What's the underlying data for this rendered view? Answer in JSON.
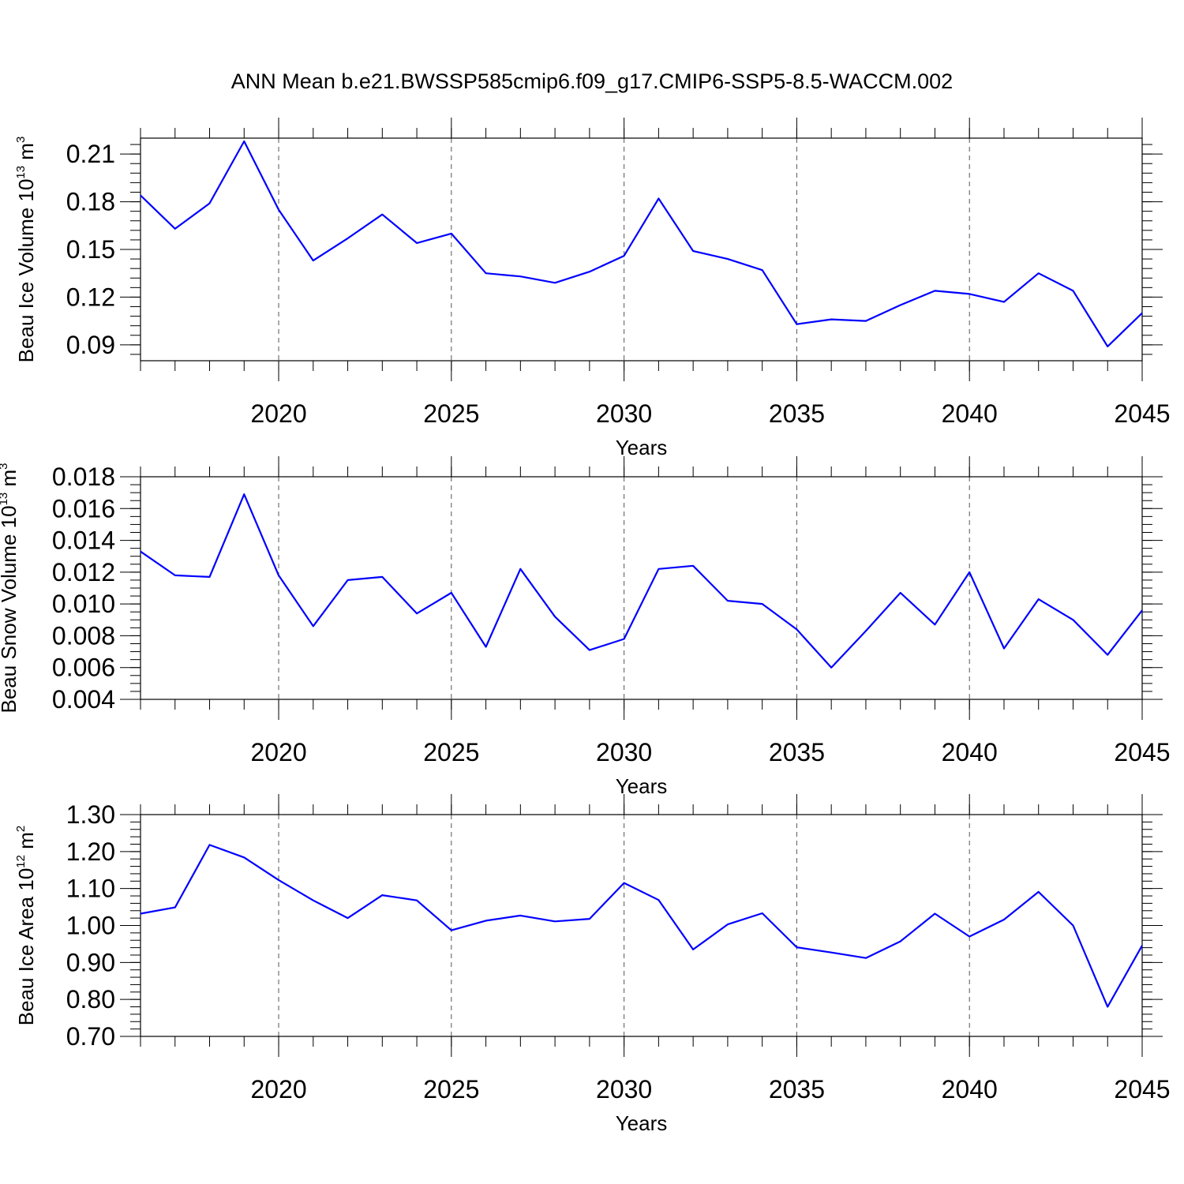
{
  "title": "ANN Mean b.e21.BWSSP585cmip6.f09_g17.CMIP6-SSP5-8.5-WACCM.002",
  "colors": {
    "line": "#0000ff"
  },
  "chart_data": [
    {
      "type": "line",
      "name": "ice-volume",
      "xlabel": "Years",
      "ylabel": {
        "text": "Beau Ice Volume 10",
        "sup": "13",
        "unit": " m",
        "unit_sup": "3"
      },
      "xlim": [
        2016,
        2045
      ],
      "ylim": [
        0.08,
        0.22
      ],
      "y_ticks": [
        0.09,
        0.12,
        0.15,
        0.18,
        0.21
      ],
      "y_tick_labels": [
        "0.09",
        "0.12",
        "0.15",
        "0.18",
        "0.21"
      ],
      "y_minor_step": 0.006,
      "x_ticks": [
        2020,
        2025,
        2030,
        2035,
        2040,
        2045
      ],
      "x_tick_labels": [
        "2020",
        "2025",
        "2030",
        "2035",
        "2040",
        "2045"
      ],
      "grid": "vertical dashed at major x ticks",
      "series": [
        {
          "name": "Beau Ice Volume",
          "x": [
            2016,
            2017,
            2018,
            2019,
            2020,
            2021,
            2022,
            2023,
            2024,
            2025,
            2026,
            2027,
            2028,
            2029,
            2030,
            2031,
            2032,
            2033,
            2034,
            2035,
            2036,
            2037,
            2038,
            2039,
            2040,
            2041,
            2042,
            2043,
            2044,
            2045
          ],
          "values": [
            0.184,
            0.163,
            0.179,
            0.218,
            0.175,
            0.143,
            0.157,
            0.172,
            0.154,
            0.16,
            0.135,
            0.133,
            0.129,
            0.136,
            0.146,
            0.182,
            0.149,
            0.144,
            0.137,
            0.103,
            0.106,
            0.105,
            0.115,
            0.124,
            0.122,
            0.117,
            0.135,
            0.124,
            0.089,
            0.11
          ]
        }
      ]
    },
    {
      "type": "line",
      "name": "snow-volume",
      "xlabel": "Years",
      "ylabel": {
        "text": "Beau Snow Volume 10",
        "sup": "13",
        "unit": " m",
        "unit_sup": "3"
      },
      "xlim": [
        2016,
        2045
      ],
      "ylim": [
        0.004,
        0.018
      ],
      "y_ticks": [
        0.004,
        0.006,
        0.008,
        0.01,
        0.012,
        0.014,
        0.016,
        0.018
      ],
      "y_tick_labels": [
        "0.004",
        "0.006",
        "0.008",
        "0.010",
        "0.012",
        "0.014",
        "0.016",
        "0.018"
      ],
      "y_minor_step": 0.0005,
      "x_ticks": [
        2020,
        2025,
        2030,
        2035,
        2040,
        2045
      ],
      "x_tick_labels": [
        "2020",
        "2025",
        "2030",
        "2035",
        "2040",
        "2045"
      ],
      "grid": "vertical dashed at major x ticks",
      "series": [
        {
          "name": "Beau Snow Volume",
          "x": [
            2016,
            2017,
            2018,
            2019,
            2020,
            2021,
            2022,
            2023,
            2024,
            2025,
            2026,
            2027,
            2028,
            2029,
            2030,
            2031,
            2032,
            2033,
            2034,
            2035,
            2036,
            2037,
            2038,
            2039,
            2040,
            2041,
            2042,
            2043,
            2044,
            2045
          ],
          "values": [
            0.0133,
            0.0118,
            0.0117,
            0.0169,
            0.0118,
            0.0086,
            0.0115,
            0.0117,
            0.0094,
            0.0107,
            0.0073,
            0.0122,
            0.0092,
            0.0071,
            0.0078,
            0.0122,
            0.0124,
            0.0102,
            0.01,
            0.0084,
            0.006,
            0.0083,
            0.0107,
            0.0087,
            0.012,
            0.0072,
            0.0103,
            0.009,
            0.0068,
            0.0096
          ]
        }
      ]
    },
    {
      "type": "line",
      "name": "ice-area",
      "xlabel": "Years",
      "ylabel": {
        "text": "Beau Ice Area 10",
        "sup": "12",
        "unit": " m",
        "unit_sup": "2"
      },
      "xlim": [
        2016,
        2045
      ],
      "ylim": [
        0.7,
        1.3
      ],
      "y_ticks": [
        0.7,
        0.8,
        0.9,
        1.0,
        1.1,
        1.2,
        1.3
      ],
      "y_tick_labels": [
        "0.70",
        "0.80",
        "0.90",
        "1.00",
        "1.10",
        "1.20",
        "1.30"
      ],
      "y_minor_step": 0.02,
      "x_ticks": [
        2020,
        2025,
        2030,
        2035,
        2040,
        2045
      ],
      "x_tick_labels": [
        "2020",
        "2025",
        "2030",
        "2035",
        "2040",
        "2045"
      ],
      "grid": "vertical dashed at major x ticks",
      "series": [
        {
          "name": "Beau Ice Area",
          "x": [
            2016,
            2017,
            2018,
            2019,
            2020,
            2021,
            2022,
            2023,
            2024,
            2025,
            2026,
            2027,
            2028,
            2029,
            2030,
            2031,
            2032,
            2033,
            2034,
            2035,
            2036,
            2037,
            2038,
            2039,
            2040,
            2041,
            2042,
            2043,
            2044,
            2045
          ],
          "values": [
            1.032,
            1.049,
            1.218,
            1.184,
            1.123,
            1.068,
            1.02,
            1.082,
            1.068,
            0.987,
            1.013,
            1.027,
            1.011,
            1.018,
            1.115,
            1.069,
            0.935,
            1.003,
            1.033,
            0.941,
            0.927,
            0.912,
            0.957,
            1.032,
            0.97,
            1.016,
            1.091,
            1.0,
            0.78,
            0.946
          ]
        }
      ]
    }
  ]
}
